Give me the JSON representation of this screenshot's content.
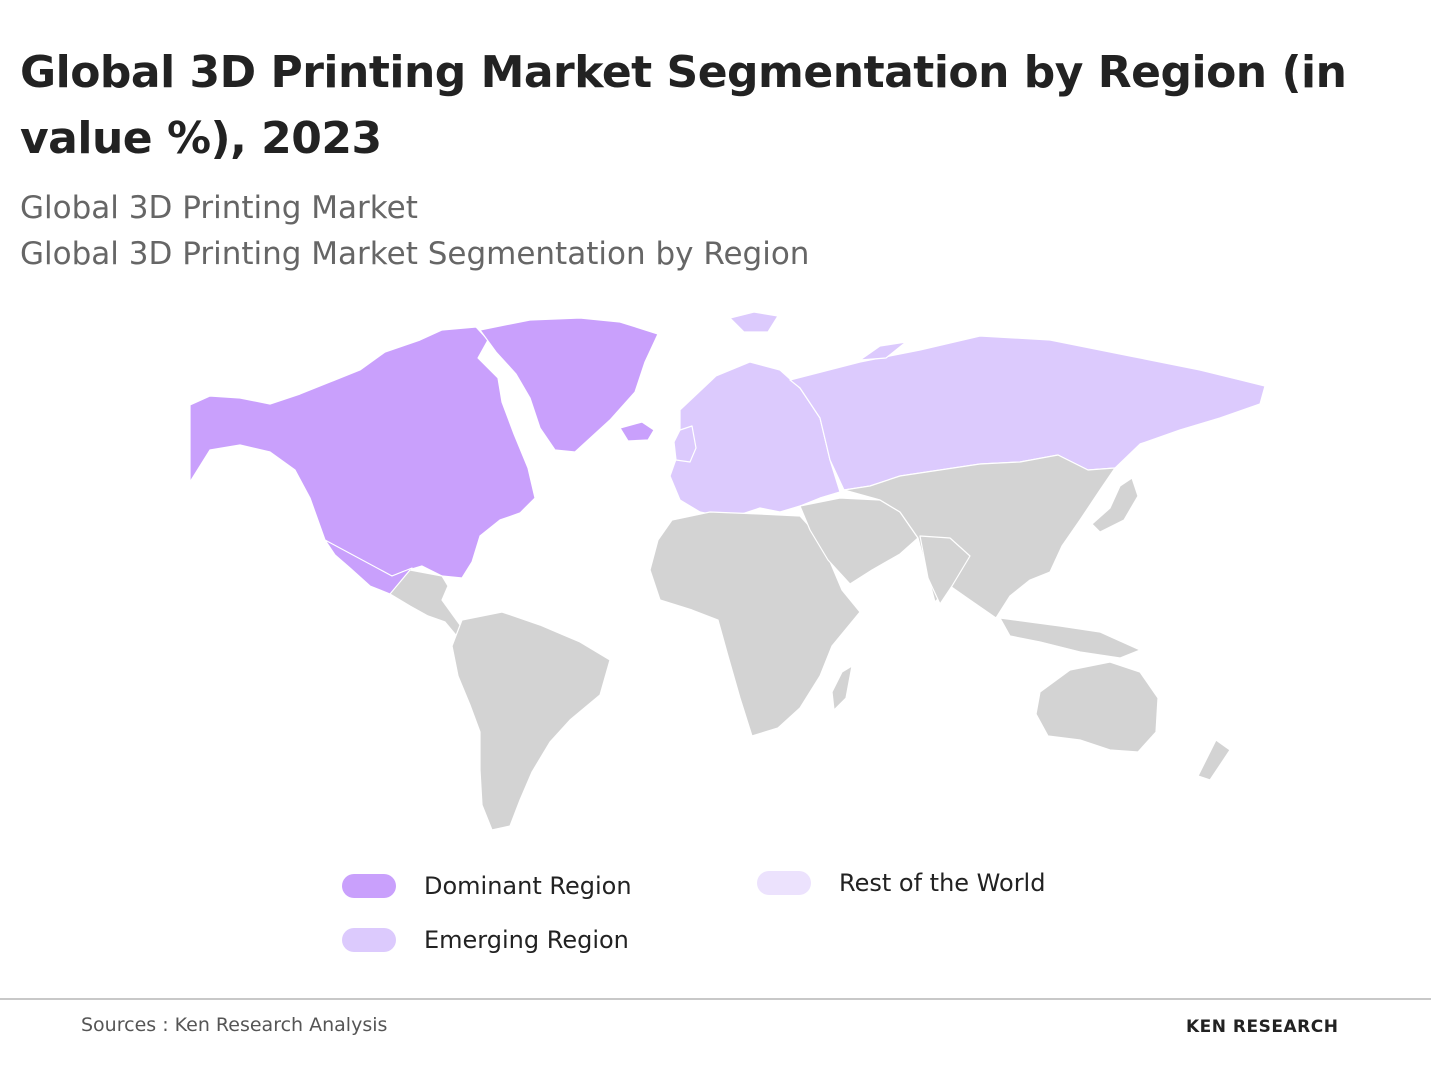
{
  "title": "Global 3D Printing Market Segmentation by Region (in value %), 2023",
  "subtitle_1": "Global 3D Printing Market",
  "subtitle_2": "Global 3D Printing Market Segmentation by Region",
  "legend": [
    {
      "label": "Dominant Region",
      "color": "#c9a0fc"
    },
    {
      "label": "Emerging Region",
      "color": "#dccafd"
    },
    {
      "label": "Rest of the World",
      "color": "#ece2fd"
    }
  ],
  "map_colors": {
    "dominant": "#c9a0fc",
    "emerging": "#dccafd",
    "rest": "#d3d3d3",
    "borders": "#ffffff"
  },
  "regions": {
    "dominant": [
      "North America",
      "Greenland"
    ],
    "emerging": [
      "Europe",
      "Russia"
    ],
    "rest": [
      "Latin America",
      "Africa",
      "Middle East",
      "Asia",
      "Oceania"
    ]
  },
  "footer": {
    "source": "Sources : Ken Research Analysis",
    "brand": "KEN RESEARCH"
  }
}
